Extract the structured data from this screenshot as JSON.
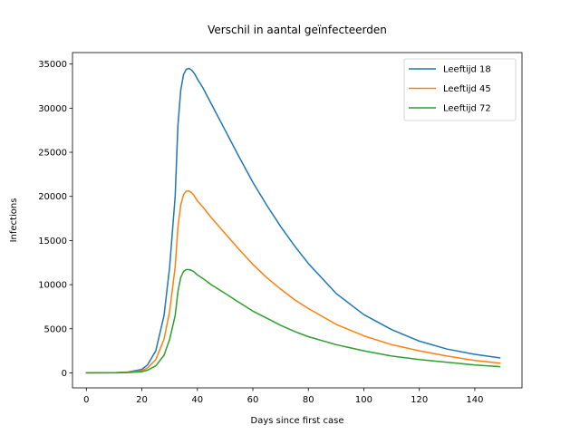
{
  "chart_data": {
    "type": "line",
    "title": "Verschil in aantal geïnfecteerden",
    "xlabel": "Days since first case",
    "ylabel": "Infections",
    "xlim": [
      -5,
      157
    ],
    "ylim": [
      -1700,
      36300
    ],
    "xticks": [
      0,
      20,
      40,
      60,
      80,
      100,
      120,
      140
    ],
    "yticks": [
      0,
      5000,
      10000,
      15000,
      20000,
      25000,
      30000,
      35000
    ],
    "grid": false,
    "legend_position": "top-right",
    "x": [
      0,
      10,
      15,
      20,
      22,
      25,
      28,
      30,
      32,
      33,
      34,
      35,
      36,
      37,
      38,
      39,
      40,
      42,
      45,
      50,
      55,
      60,
      65,
      70,
      75,
      80,
      90,
      100,
      110,
      120,
      130,
      140,
      149
    ],
    "series": [
      {
        "name": "Leeftijd 18",
        "color": "#1f77b4",
        "values": [
          0,
          20,
          100,
          400,
          900,
          2500,
          6500,
          12000,
          20000,
          28000,
          32000,
          33800,
          34400,
          34500,
          34300,
          33900,
          33300,
          32300,
          30500,
          27500,
          24500,
          21600,
          19000,
          16600,
          14400,
          12400,
          9000,
          6600,
          4900,
          3600,
          2700,
          2100,
          1700
        ]
      },
      {
        "name": "Leeftijd 45",
        "color": "#ff7f0e",
        "values": [
          0,
          15,
          70,
          250,
          550,
          1500,
          3800,
          7000,
          12000,
          16500,
          19000,
          20200,
          20600,
          20600,
          20400,
          20000,
          19500,
          18800,
          17600,
          15800,
          14000,
          12300,
          10800,
          9500,
          8300,
          7300,
          5500,
          4200,
          3200,
          2500,
          1900,
          1400,
          1100
        ]
      },
      {
        "name": "Leeftijd 72",
        "color": "#2ca02c",
        "values": [
          0,
          8,
          40,
          140,
          300,
          800,
          2000,
          3800,
          6500,
          9200,
          10800,
          11500,
          11700,
          11700,
          11600,
          11400,
          11100,
          10700,
          10000,
          9000,
          8000,
          7000,
          6200,
          5400,
          4700,
          4100,
          3200,
          2500,
          1900,
          1500,
          1200,
          900,
          700
        ]
      }
    ]
  }
}
